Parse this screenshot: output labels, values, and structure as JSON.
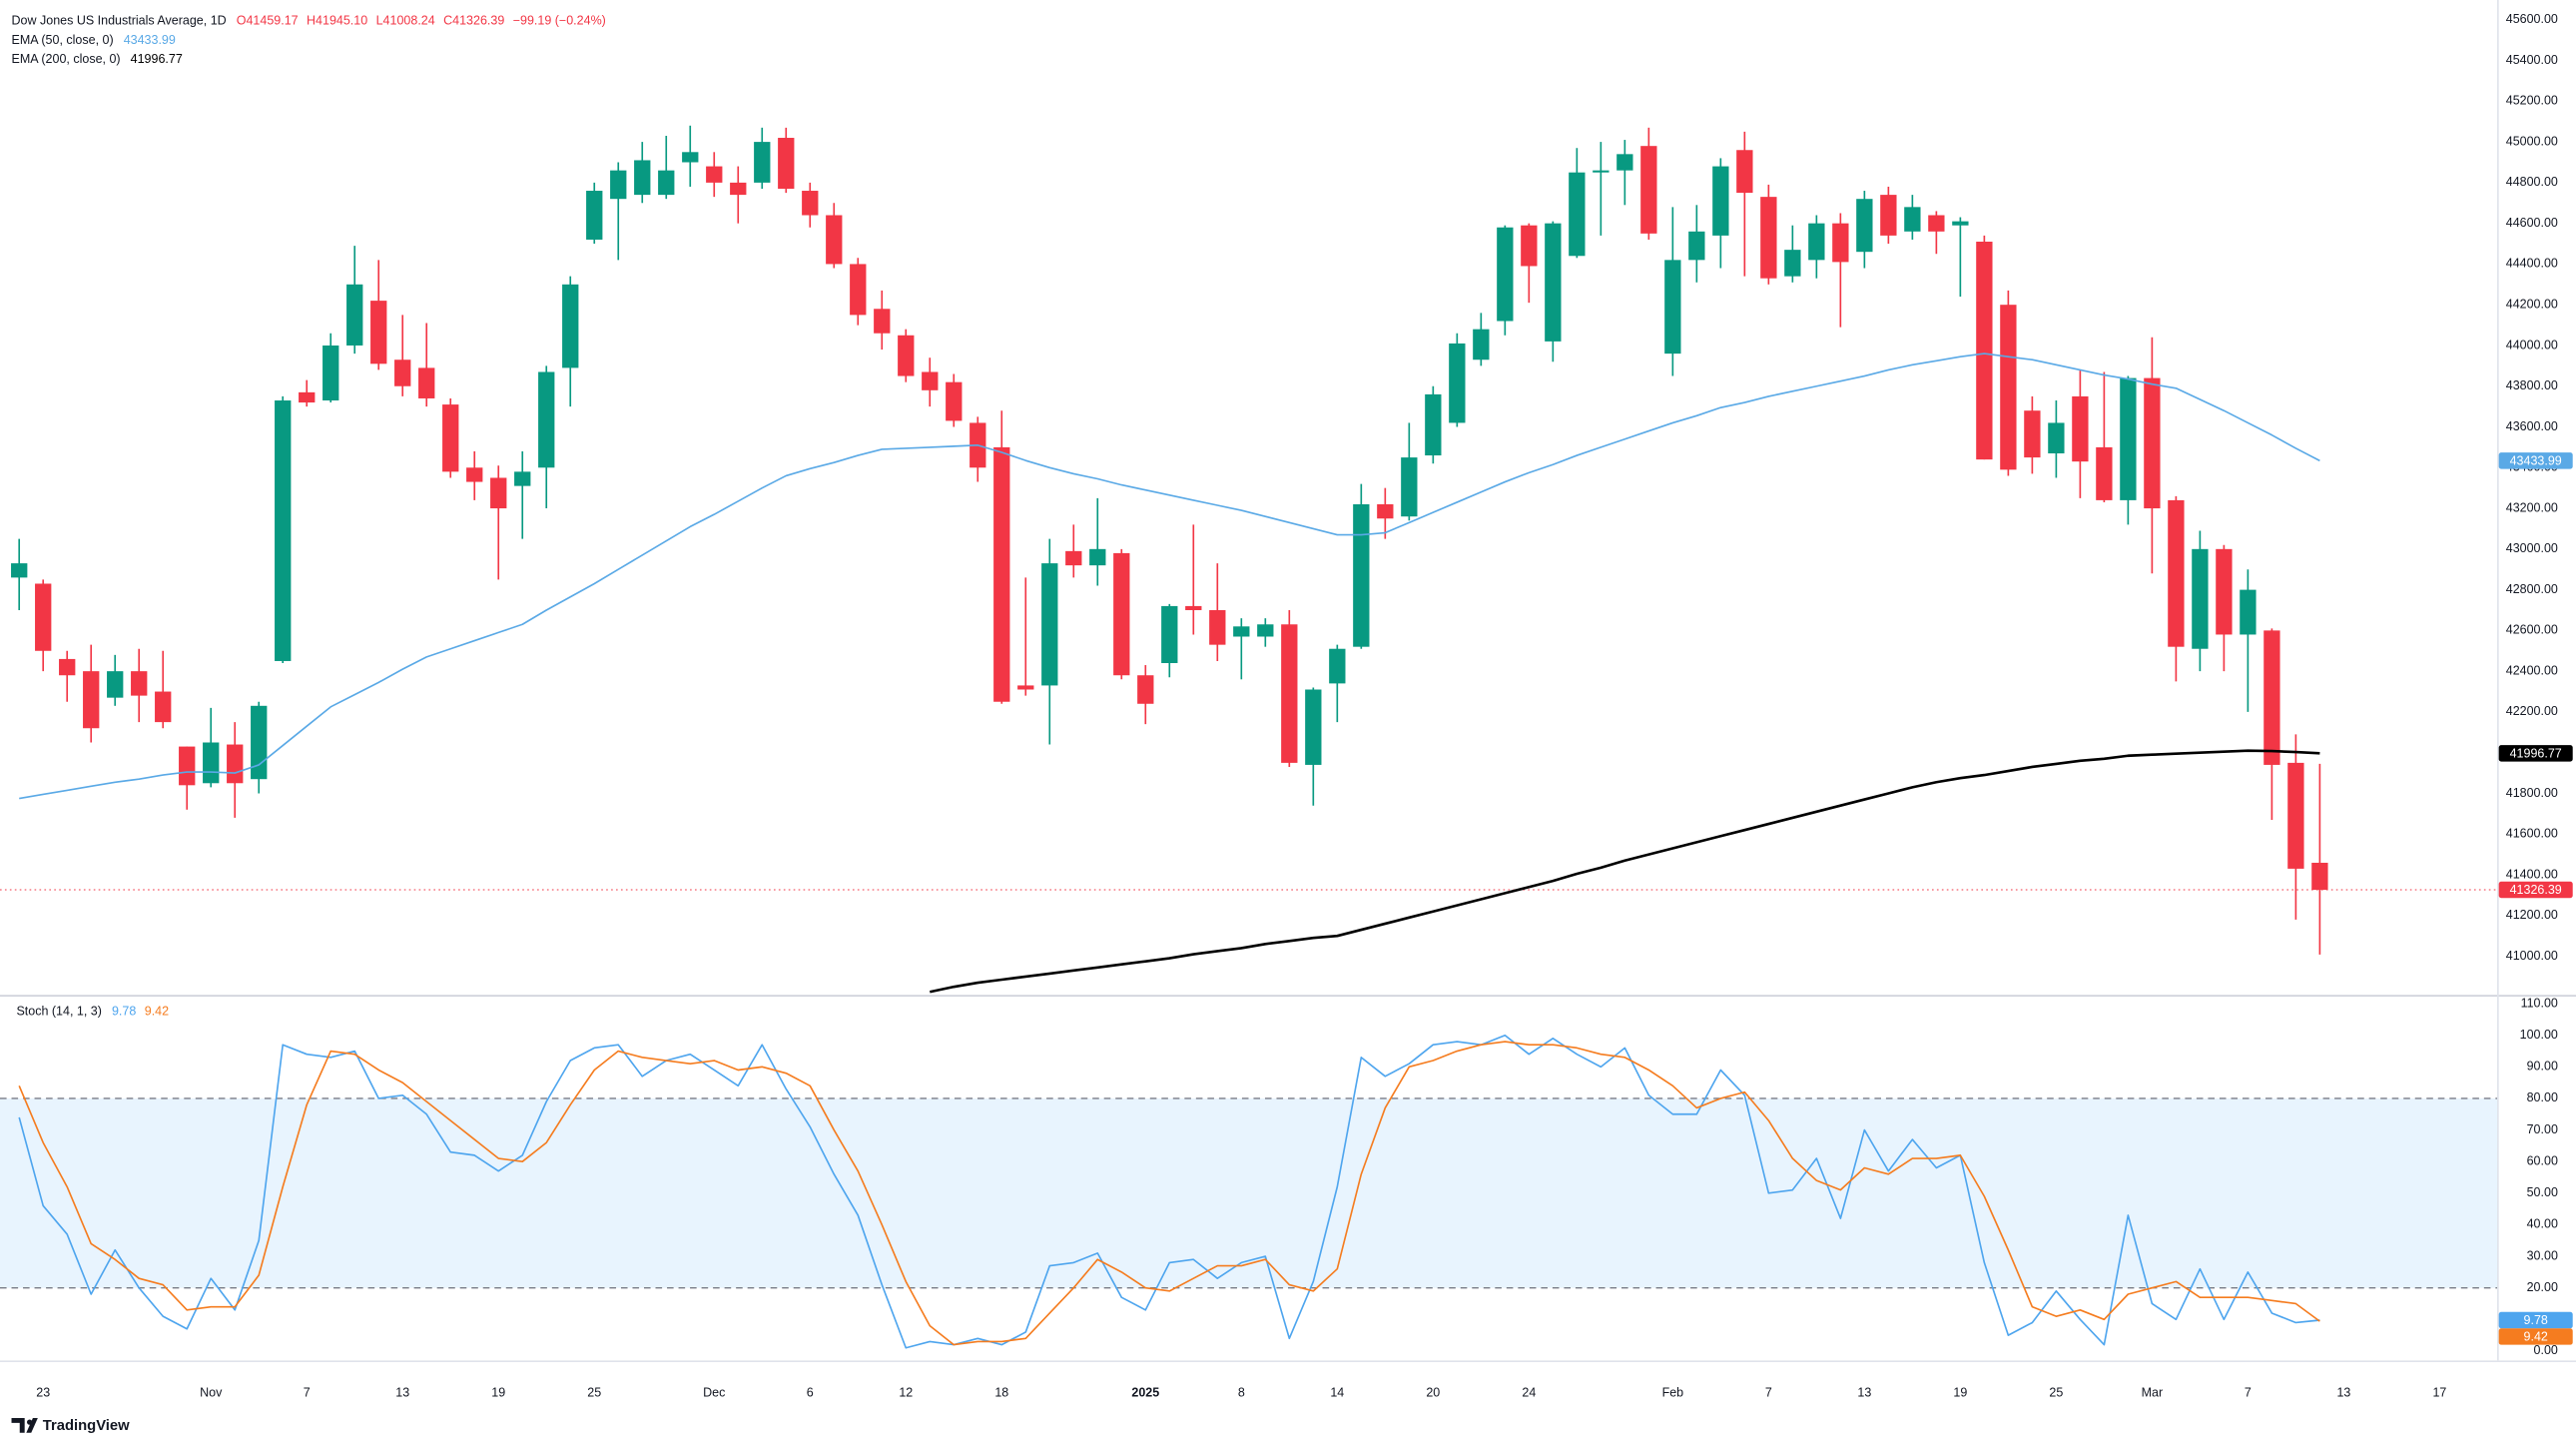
{
  "chart_data": [
    {
      "type": "candlestick",
      "title": "Dow Jones US Industrials Average, 1D",
      "quote": [
        "O41459.17",
        "H41945.10",
        "L41008.24",
        "C41326.39",
        "−99.19 (−0.24%)"
      ],
      "up_color": "#089981",
      "down_color": "#f23645",
      "open": [
        42860,
        42830,
        42460,
        42400,
        42270,
        42400,
        42300,
        42030,
        41850,
        42040,
        41870,
        42450,
        43770,
        43730,
        44000,
        44220,
        43930,
        43890,
        43710,
        43400,
        43350,
        43310,
        43400,
        43890,
        44520,
        44720,
        44740,
        44740,
        44900,
        44880,
        44800,
        44800,
        45020,
        44760,
        44640,
        44400,
        44180,
        44050,
        43870,
        43820,
        43620,
        43500,
        42330,
        42330,
        42990,
        42920,
        42980,
        42380,
        42440,
        42720,
        42700,
        42570,
        42570,
        42630,
        41940,
        42340,
        42520,
        43220,
        43160,
        43460,
        43620,
        43930,
        44120,
        44590,
        44020,
        44440,
        44850,
        44860,
        44980,
        43960,
        44420,
        44540,
        44960,
        44730,
        44340,
        44420,
        44600,
        44460,
        44740,
        44560,
        44640,
        44590,
        44510,
        44200,
        43680,
        43470,
        43750,
        43500,
        43240,
        43840,
        43240,
        42510,
        43000,
        42580,
        42600,
        41950,
        41459.17
      ],
      "high": [
        43050,
        42850,
        42500,
        42530,
        42480,
        42510,
        42500,
        42030,
        42220,
        42150,
        42250,
        43750,
        43830,
        44060,
        44490,
        44420,
        44150,
        44110,
        43740,
        43480,
        43410,
        43480,
        43900,
        44340,
        44800,
        44900,
        45000,
        45030,
        45080,
        44950,
        44880,
        45070,
        45070,
        44800,
        44700,
        44430,
        44270,
        44080,
        43940,
        43860,
        43650,
        43680,
        42860,
        43050,
        43120,
        43250,
        43000,
        42430,
        42730,
        43120,
        42930,
        42660,
        42660,
        42700,
        42320,
        42530,
        43320,
        43300,
        43620,
        43800,
        44060,
        44160,
        44590,
        44600,
        44610,
        44970,
        45000,
        45010,
        45070,
        44680,
        44690,
        44920,
        45050,
        44790,
        44590,
        44640,
        44650,
        44760,
        44780,
        44740,
        44660,
        44630,
        44540,
        44270,
        43750,
        43730,
        43880,
        43870,
        43850,
        44040,
        43260,
        43090,
        43020,
        42900,
        42610,
        42090,
        41945.1
      ],
      "low": [
        42700,
        42400,
        42250,
        42050,
        42230,
        42150,
        42120,
        41720,
        41830,
        41680,
        41800,
        42440,
        43700,
        43720,
        43960,
        43880,
        43750,
        43700,
        43350,
        43240,
        42850,
        43050,
        43200,
        43700,
        44500,
        44420,
        44700,
        44720,
        44780,
        44730,
        44600,
        44770,
        44750,
        44580,
        44380,
        44100,
        43980,
        43820,
        43700,
        43600,
        43330,
        42240,
        42280,
        42040,
        42860,
        42820,
        42360,
        42140,
        42370,
        42580,
        42450,
        42360,
        42520,
        41930,
        41740,
        42150,
        42510,
        43050,
        43140,
        43420,
        43600,
        43900,
        44050,
        44210,
        43920,
        44430,
        44540,
        44690,
        44520,
        43850,
        44310,
        44380,
        44340,
        44300,
        44310,
        44330,
        44090,
        44380,
        44500,
        44520,
        44450,
        44240,
        43440,
        43360,
        43370,
        43350,
        43250,
        43230,
        43120,
        42880,
        42350,
        42400,
        42400,
        42200,
        41670,
        41180,
        41008.24
      ],
      "close": [
        42930,
        42500,
        42380,
        42120,
        42400,
        42280,
        42150,
        41840,
        42050,
        41850,
        42230,
        43730,
        43720,
        44000,
        44300,
        43910,
        43800,
        43740,
        43380,
        43330,
        43200,
        43380,
        43870,
        44300,
        44760,
        44860,
        44910,
        44860,
        44950,
        44800,
        44740,
        45000,
        44770,
        44640,
        44400,
        44150,
        44060,
        43850,
        43780,
        43630,
        43400,
        42250,
        42310,
        42930,
        42920,
        43000,
        42380,
        42240,
        42720,
        42700,
        42530,
        42620,
        42630,
        41950,
        42310,
        42510,
        43220,
        43150,
        43450,
        43760,
        44010,
        44080,
        44580,
        44390,
        44600,
        44850,
        44860,
        44940,
        44550,
        44420,
        44560,
        44880,
        44750,
        44330,
        44470,
        44600,
        44410,
        44720,
        44540,
        44680,
        44560,
        44610,
        43440,
        43390,
        43450,
        43620,
        43430,
        43240,
        43840,
        43200,
        42520,
        43000,
        42580,
        42800,
        41940,
        41430,
        41326.39
      ],
      "series": [
        {
          "name": "EMA (50, close, 0)",
          "color": "#5aa9e6",
          "values": [
            41775,
            41795,
            41815,
            41835,
            41855,
            41870,
            41890,
            41905,
            41905,
            41900,
            41940,
            42035,
            42130,
            42225,
            42285,
            42345,
            42410,
            42470,
            42510,
            42550,
            42590,
            42630,
            42700,
            42765,
            42830,
            42900,
            42970,
            43040,
            43110,
            43170,
            43235,
            43300,
            43360,
            43395,
            43425,
            43460,
            43490,
            43495,
            43500,
            43505,
            43510,
            43475,
            43435,
            43400,
            43370,
            43345,
            43315,
            43290,
            43265,
            43240,
            43215,
            43190,
            43160,
            43130,
            43100,
            43070,
            43070,
            43080,
            43130,
            43180,
            43230,
            43280,
            43330,
            43375,
            43415,
            43460,
            43500,
            43540,
            43580,
            43620,
            43655,
            43695,
            43720,
            43750,
            43775,
            43800,
            43825,
            43850,
            43880,
            43905,
            43925,
            43945,
            43960,
            43945,
            43930,
            43905,
            43880,
            43855,
            43835,
            43810,
            43790,
            43735,
            43680,
            43620,
            43560,
            43495,
            43433.99
          ]
        },
        {
          "name": "EMA (200, close, 0)",
          "color": "#000000",
          "values": [
            null,
            null,
            null,
            null,
            null,
            null,
            null,
            null,
            null,
            null,
            null,
            null,
            null,
            null,
            null,
            null,
            null,
            null,
            null,
            null,
            null,
            null,
            null,
            null,
            null,
            null,
            null,
            null,
            null,
            null,
            null,
            null,
            null,
            null,
            null,
            null,
            null,
            null,
            40825,
            40850,
            40870,
            40885,
            40900,
            40915,
            40930,
            40945,
            40960,
            40975,
            40990,
            41010,
            41025,
            41040,
            41060,
            41075,
            41090,
            41100,
            41130,
            41160,
            41190,
            41220,
            41250,
            41280,
            41310,
            41340,
            41370,
            41405,
            41435,
            41470,
            41500,
            41530,
            41560,
            41590,
            41620,
            41650,
            41680,
            41710,
            41740,
            41770,
            41800,
            41830,
            41855,
            41875,
            41890,
            41910,
            41930,
            41945,
            41960,
            41970,
            41985,
            41990,
            41995,
            42000,
            42005,
            42010,
            42008,
            42003,
            41996.77
          ]
        }
      ],
      "xlim": [
        -0.8,
        103.4
      ],
      "ylim": [
        40814,
        45697
      ],
      "yticks": [
        {
          "value": 41000,
          "label": "41000.00"
        },
        {
          "value": 41200,
          "label": "41200.00"
        },
        {
          "value": 41400,
          "label": "41400.00"
        },
        {
          "value": 41600,
          "label": "41600.00"
        },
        {
          "value": 41800,
          "label": "41800.00"
        },
        {
          "value": 42000,
          "label": "42000.00"
        },
        {
          "value": 42200,
          "label": "42200.00"
        },
        {
          "value": 42400,
          "label": "42400.00"
        },
        {
          "value": 42600,
          "label": "42600.00"
        },
        {
          "value": 42800,
          "label": "42800.00"
        },
        {
          "value": 43000,
          "label": "43000.00"
        },
        {
          "value": 43200,
          "label": "43200.00"
        },
        {
          "value": 43400,
          "label": "43400.00"
        },
        {
          "value": 43600,
          "label": "43600.00"
        },
        {
          "value": 43800,
          "label": "43800.00"
        },
        {
          "value": 44000,
          "label": "44000.00"
        },
        {
          "value": 44200,
          "label": "44200.00"
        },
        {
          "value": 44400,
          "label": "44400.00"
        },
        {
          "value": 44600,
          "label": "44600.00"
        },
        {
          "value": 44800,
          "label": "44800.00"
        },
        {
          "value": 45000,
          "label": "45000.00"
        },
        {
          "value": 45200,
          "label": "45200.00"
        },
        {
          "value": 45400,
          "label": "45400.00"
        },
        {
          "value": 45600,
          "label": "45600.00"
        }
      ],
      "grid": false
    },
    {
      "type": "line",
      "title": "Stoch (14, 1, 3)",
      "series": [
        {
          "color": "#4ea5ee",
          "values": [
            74,
            46,
            37,
            18,
            32,
            20,
            11,
            7,
            23,
            13,
            35,
            97,
            94,
            93,
            95,
            80,
            81,
            75,
            63,
            62,
            57,
            62,
            79,
            92,
            96,
            97,
            87,
            92,
            94,
            89,
            84,
            97,
            83,
            71,
            56,
            43,
            21,
            1,
            3,
            2,
            4,
            2,
            6,
            27,
            28,
            31,
            17,
            13,
            28,
            29,
            23,
            28,
            30,
            4,
            22,
            52,
            93,
            87,
            91,
            97,
            98,
            97,
            100,
            94,
            99,
            94,
            90,
            96,
            81,
            75,
            75,
            89,
            81,
            50,
            51,
            61,
            42,
            70,
            57,
            67,
            58,
            62,
            28,
            5,
            9,
            19,
            10,
            2,
            43,
            15,
            10,
            26,
            10,
            25,
            12,
            9,
            9.78
          ]
        },
        {
          "color": "#f57c1f",
          "values": [
            84,
            66,
            52,
            34,
            29,
            23,
            21,
            13,
            14,
            14,
            24,
            52,
            78,
            95,
            94,
            89,
            85,
            79,
            73,
            67,
            61,
            60,
            66,
            78,
            89,
            95,
            93,
            92,
            91,
            92,
            89,
            90,
            88,
            84,
            70,
            57,
            40,
            22,
            8,
            2,
            3,
            3,
            4,
            12,
            20,
            29,
            25,
            20,
            19,
            23,
            27,
            27,
            29,
            21,
            19,
            26,
            56,
            77,
            90,
            92,
            95,
            97,
            98,
            97,
            97,
            96,
            94,
            93,
            89,
            84,
            77,
            80,
            82,
            73,
            61,
            54,
            51,
            58,
            56,
            61,
            61,
            62,
            49,
            32,
            14,
            11,
            13,
            10,
            18,
            20,
            22,
            17,
            17,
            17,
            16,
            15,
            9.42
          ]
        }
      ],
      "band": [
        20,
        80
      ],
      "band_color": "#2196f3",
      "xlim": [
        -0.8,
        103.4
      ],
      "ylim": [
        -3,
        112
      ],
      "yticks": [
        {
          "value": 0,
          "label": "0.00"
        },
        {
          "value": 10,
          "label": "10.00"
        },
        {
          "value": 20,
          "label": "20.00"
        },
        {
          "value": 30,
          "label": "30.00"
        },
        {
          "value": 40,
          "label": "40.00"
        },
        {
          "value": 50,
          "label": "50.00"
        },
        {
          "value": 60,
          "label": "60.00"
        },
        {
          "value": 70,
          "label": "70.00"
        },
        {
          "value": 80,
          "label": "80.00"
        },
        {
          "value": 90,
          "label": "90.00"
        },
        {
          "value": 100,
          "label": "100.00"
        },
        {
          "value": 110,
          "label": "110.00"
        }
      ],
      "xticks": [
        {
          "value": 1,
          "label": "23"
        },
        {
          "value": 8,
          "label": "Nov"
        },
        {
          "value": 12,
          "label": "7"
        },
        {
          "value": 16,
          "label": "13"
        },
        {
          "value": 20,
          "label": "19"
        },
        {
          "value": 24,
          "label": "25"
        },
        {
          "value": 29,
          "label": "Dec"
        },
        {
          "value": 33,
          "label": "6"
        },
        {
          "value": 37,
          "label": "12"
        },
        {
          "value": 41,
          "label": "18"
        },
        {
          "value": 47,
          "label": "2025"
        },
        {
          "value": 51,
          "label": "8"
        },
        {
          "value": 55,
          "label": "14"
        },
        {
          "value": 59,
          "label": "20"
        },
        {
          "value": 63,
          "label": "24"
        },
        {
          "value": 69,
          "label": "Feb"
        },
        {
          "value": 73,
          "label": "7"
        },
        {
          "value": 77,
          "label": "13"
        },
        {
          "value": 81,
          "label": "19"
        },
        {
          "value": 85,
          "label": "25"
        },
        {
          "value": 89,
          "label": "Mar"
        },
        {
          "value": 93,
          "label": "7"
        },
        {
          "value": 97,
          "label": "13"
        },
        {
          "value": 101,
          "label": "17"
        }
      ]
    }
  ],
  "footer": {
    "brand": "TradingView"
  }
}
